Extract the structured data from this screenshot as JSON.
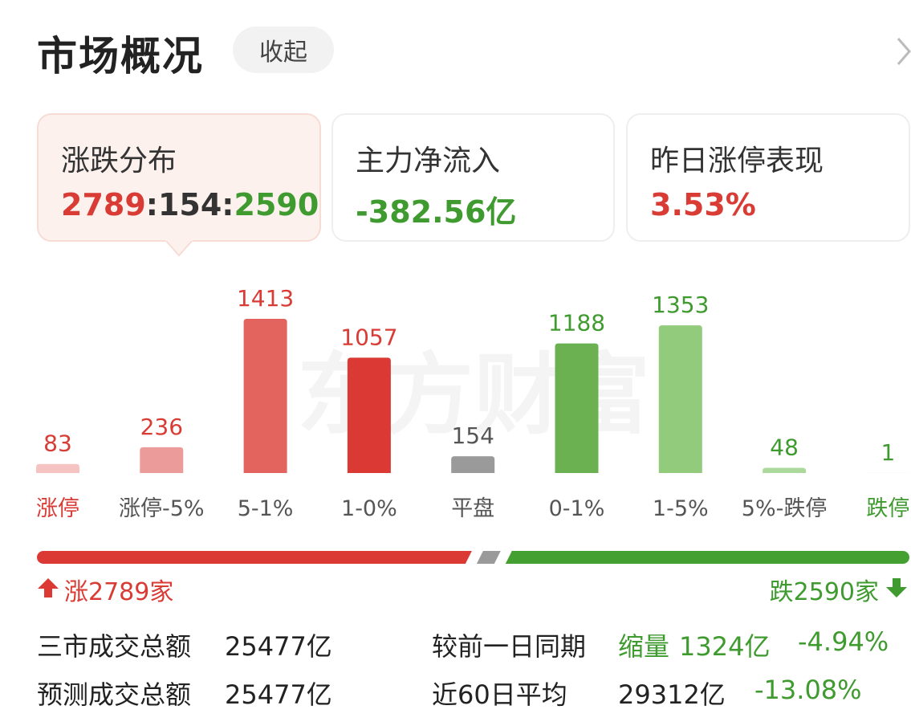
{
  "header": {
    "title": "市场概况",
    "button": "收起"
  },
  "cards": [
    {
      "title": "涨跌分布",
      "up": 2789,
      "separator": ":",
      "flat": 154,
      "down": 2590
    },
    {
      "title": "主力净流入",
      "value": "-382.56亿"
    },
    {
      "title": "昨日涨停表现",
      "value": "3.53%"
    }
  ],
  "chart_data": {
    "type": "bar",
    "watermark": "东方财富",
    "categories": [
      "涨停",
      "涨停-5%",
      "5-1%",
      "1-0%",
      "平盘",
      "0-1%",
      "1-5%",
      "5%-跌停",
      "跌停"
    ],
    "values": [
      83,
      236,
      1413,
      1057,
      154,
      1188,
      1353,
      48,
      1
    ],
    "colors": [
      "#f5c4c2",
      "#eb9c9a",
      "#e3635f",
      "#db3a34",
      "#9a9a9a",
      "#6bb152",
      "#92cb7b",
      "#acd99c",
      "#d4ecca"
    ],
    "label_colors": [
      "#d93b35",
      "#d93b35",
      "#d93b35",
      "#d93b35",
      "#555555",
      "#3f9b2f",
      "#3f9b2f",
      "#3f9b2f",
      "#3f9b2f"
    ],
    "category_colors": [
      "#d93b35",
      "#555555",
      "#555555",
      "#555555",
      "#555555",
      "#555555",
      "#555555",
      "#555555",
      "#3f9b2f"
    ]
  },
  "breadth": {
    "up_prefix": "涨",
    "down_prefix": "跌",
    "suffix": "家",
    "up_color": "#db3a34",
    "flat_color": "#9a9a9a",
    "down_color": "#45a032"
  },
  "stats": [
    {
      "label": "三市成交总额",
      "value": "25477亿",
      "label2": "较前一日同期",
      "tag": "缩量",
      "amount": "1324亿",
      "change": "-4.94%"
    },
    {
      "label": "预测成交总额",
      "value": "25477亿",
      "label2": "近60日平均",
      "amount": "29312亿",
      "change": "-13.08%"
    }
  ]
}
